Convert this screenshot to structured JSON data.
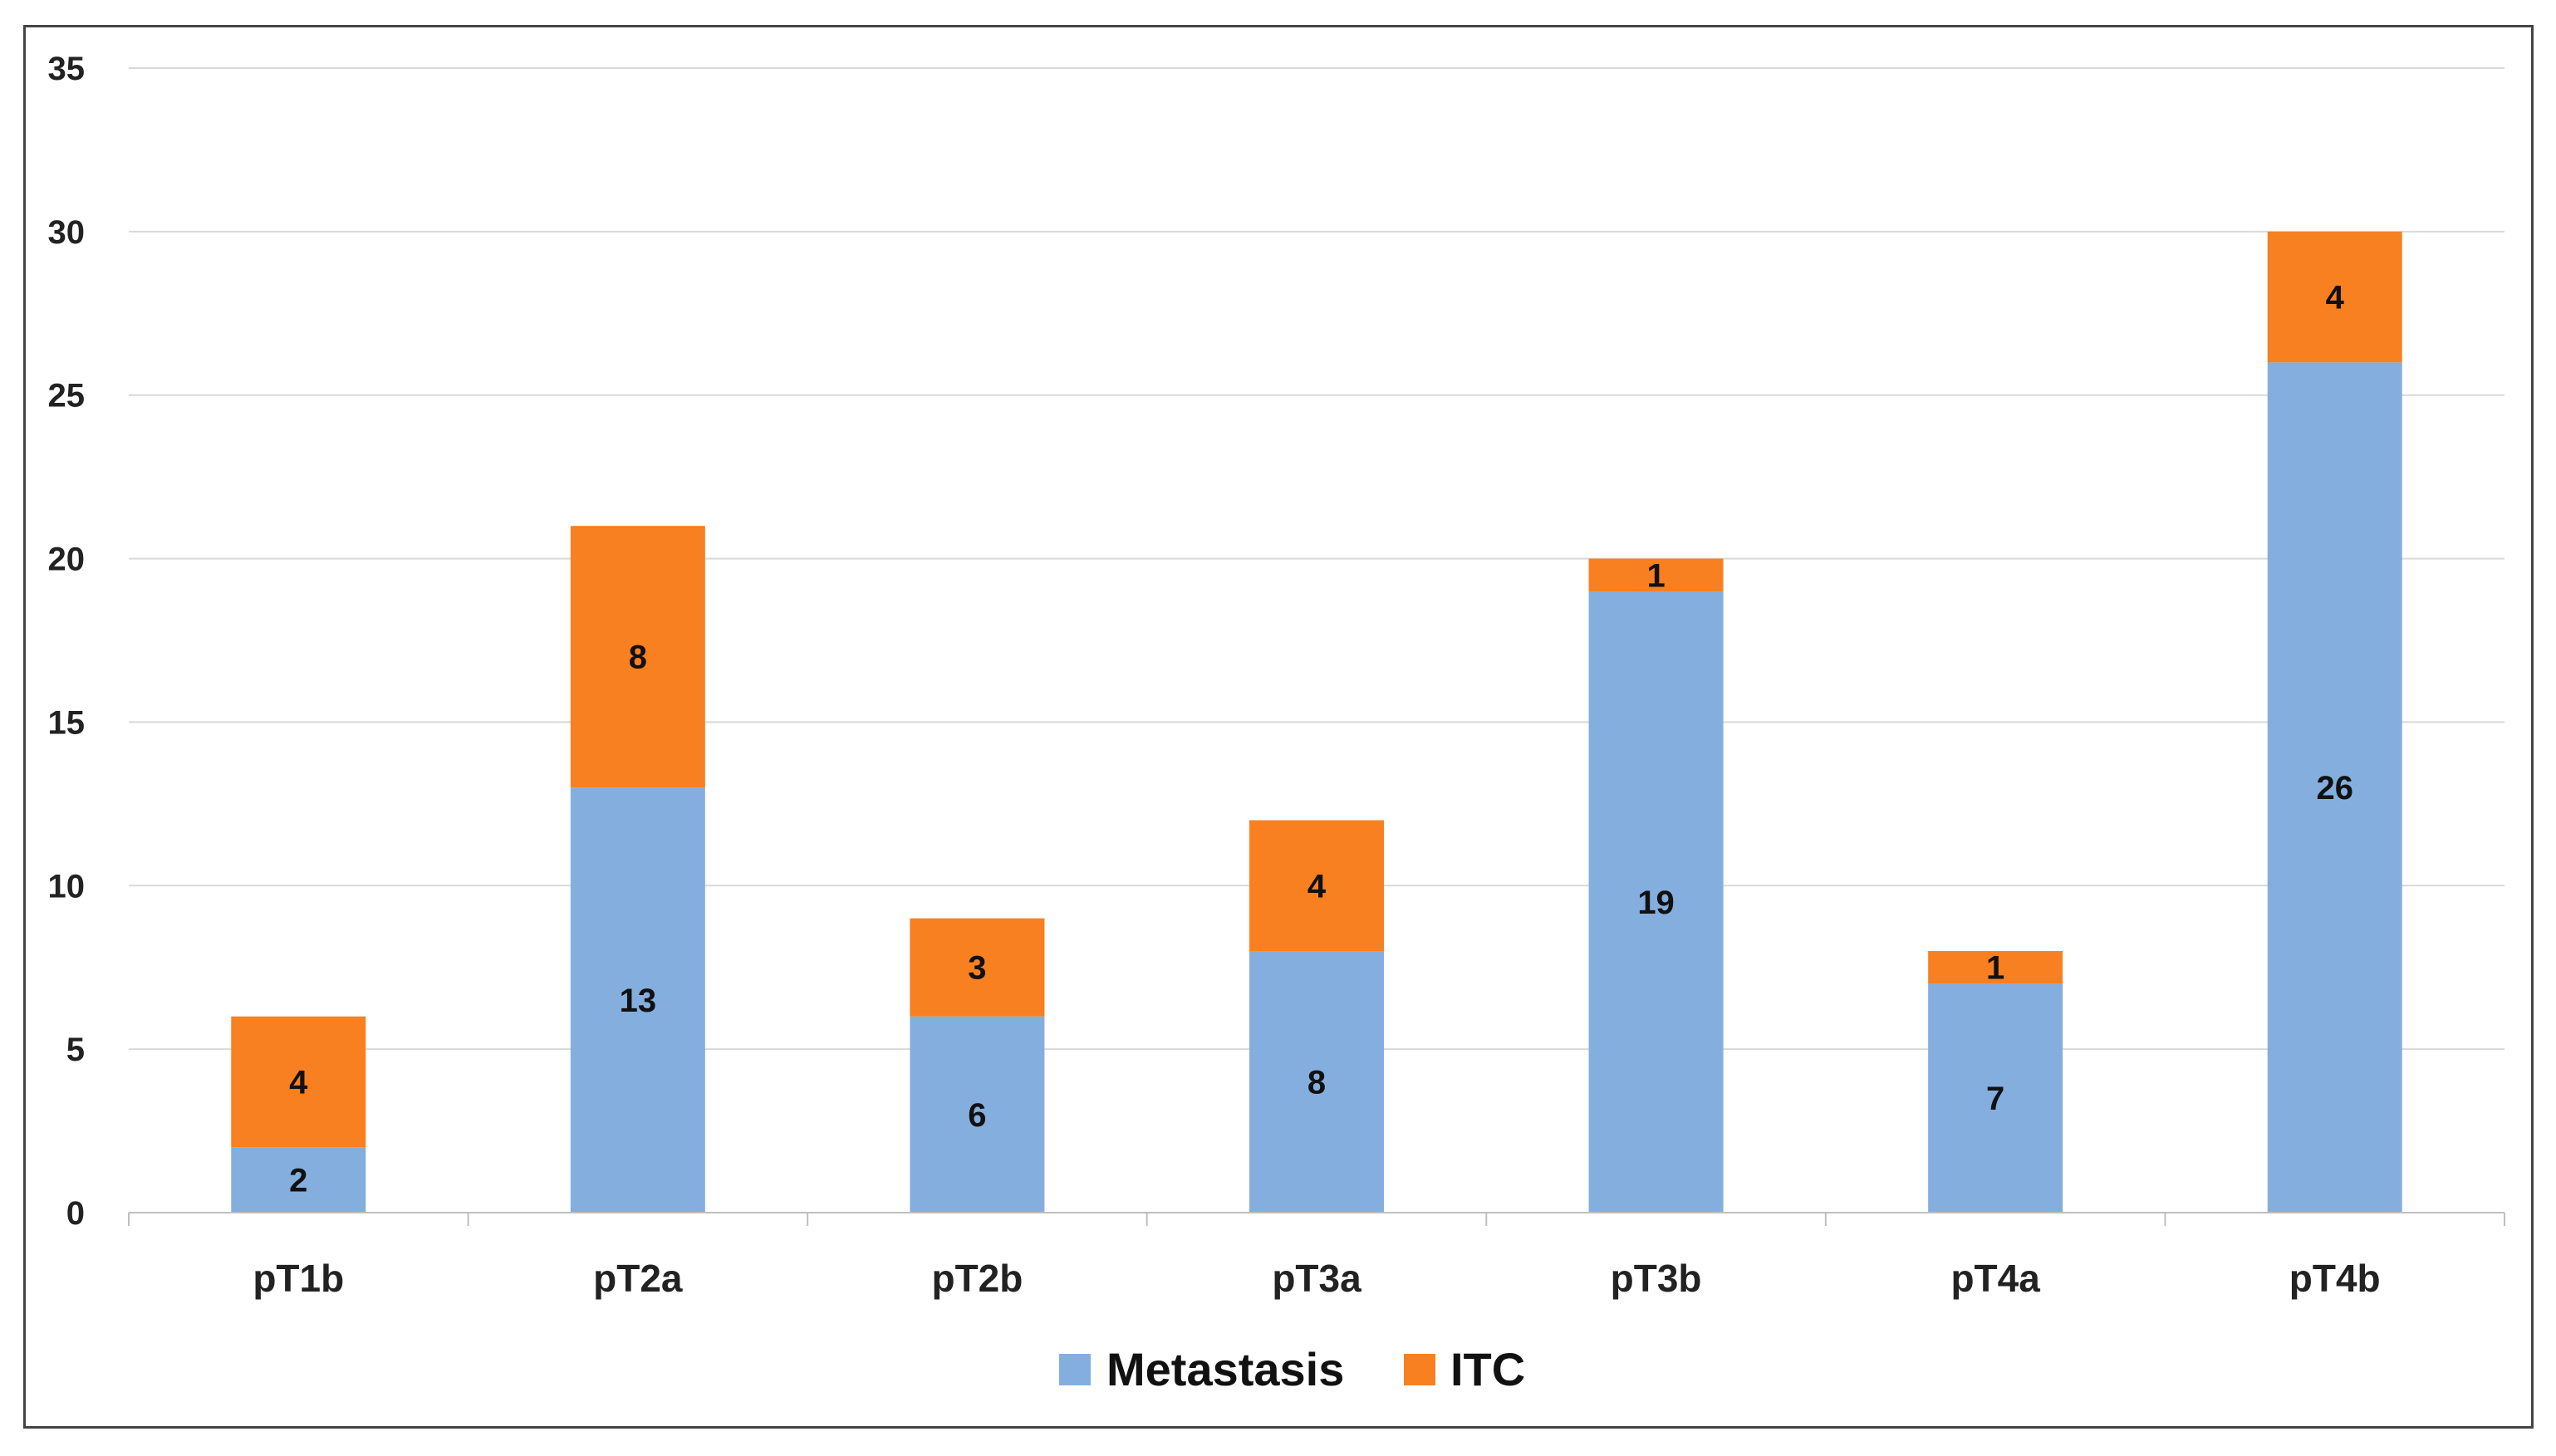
{
  "chart_data": {
    "type": "bar",
    "stacked": true,
    "title": "",
    "xlabel": "",
    "ylabel": "",
    "categories": [
      "pT1b",
      "pT2a",
      "pT2b",
      "pT3a",
      "pT3b",
      "pT4a",
      "pT4b"
    ],
    "series": [
      {
        "name": "Metastasis",
        "color": "#84AEDE",
        "values": [
          2,
          13,
          6,
          8,
          19,
          7,
          26
        ]
      },
      {
        "name": "ITC",
        "color": "#F98020",
        "values": [
          4,
          8,
          3,
          4,
          1,
          1,
          4
        ]
      }
    ],
    "ylim": [
      0,
      35
    ],
    "yticks": [
      0,
      5,
      10,
      15,
      20,
      25,
      30,
      35
    ],
    "grid": true,
    "legend": "bottom-center",
    "data_labels": true
  }
}
